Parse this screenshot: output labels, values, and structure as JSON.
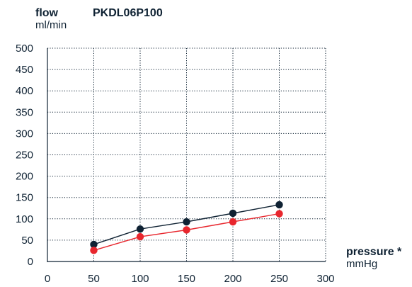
{
  "chart_data": {
    "type": "line",
    "title": "PKDL06P100",
    "ylabel": "flow",
    "yunit": "ml/min",
    "xlabel": "pressure *",
    "xunit": "mmHg",
    "xlim": [
      0,
      300
    ],
    "ylim": [
      0,
      500
    ],
    "x_ticks": [
      "0",
      "50",
      "100",
      "150",
      "200",
      "250",
      "300"
    ],
    "y_ticks": [
      "0",
      "50",
      "100",
      "150",
      "200",
      "250",
      "300",
      "350",
      "400",
      "450",
      "500"
    ],
    "grid": true,
    "grid_style": "dotted",
    "x": [
      50,
      100,
      150,
      200,
      250
    ],
    "series": [
      {
        "color": "#0f2233",
        "values": [
          40,
          76,
          93,
          113,
          133
        ]
      },
      {
        "color": "#e8262d",
        "values": [
          26,
          58,
          74,
          93,
          112
        ]
      }
    ]
  }
}
